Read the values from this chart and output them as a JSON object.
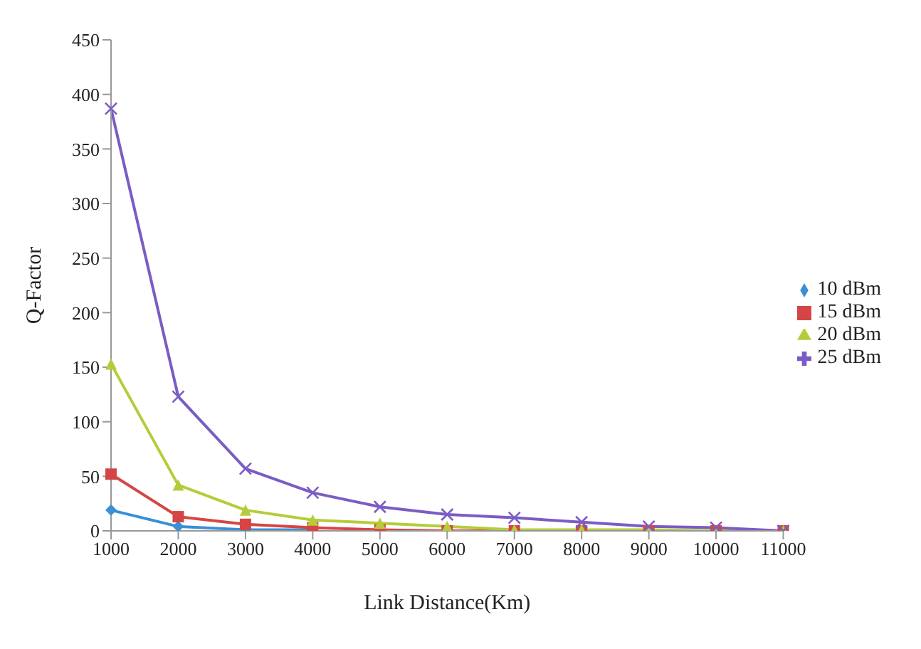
{
  "chart_data": {
    "type": "line",
    "xlabel": "Link Distance(Km)",
    "ylabel": "Q-Factor",
    "categories": [
      "1000",
      "2000",
      "3000",
      "4000",
      "5000",
      "6000",
      "7000",
      "8000",
      "9000",
      "10000",
      "11000"
    ],
    "series": [
      {
        "name": "10 dBm",
        "color": "#3a8fd6",
        "marker": "diamond",
        "values": [
          19,
          4,
          1,
          1,
          null,
          null,
          null,
          null,
          null,
          null,
          null
        ]
      },
      {
        "name": "15 dBm",
        "color": "#d64545",
        "marker": "square",
        "values": [
          52,
          13,
          6,
          3,
          1,
          0,
          0,
          0,
          0,
          0,
          0
        ]
      },
      {
        "name": "20 dBm",
        "color": "#b5cc3a",
        "marker": "triangle",
        "values": [
          153,
          42,
          19,
          10,
          7,
          4,
          1,
          1,
          1,
          0,
          0
        ]
      },
      {
        "name": "25 dBm",
        "color": "#7b5cc4",
        "marker": "cross",
        "values": [
          387,
          123,
          57,
          35,
          22,
          15,
          12,
          8,
          4,
          3,
          0
        ]
      }
    ],
    "ylim": [
      0,
      450
    ],
    "yticks": [
      0,
      50,
      100,
      150,
      200,
      250,
      300,
      350,
      400,
      450
    ],
    "grid": false,
    "legend": "right"
  }
}
